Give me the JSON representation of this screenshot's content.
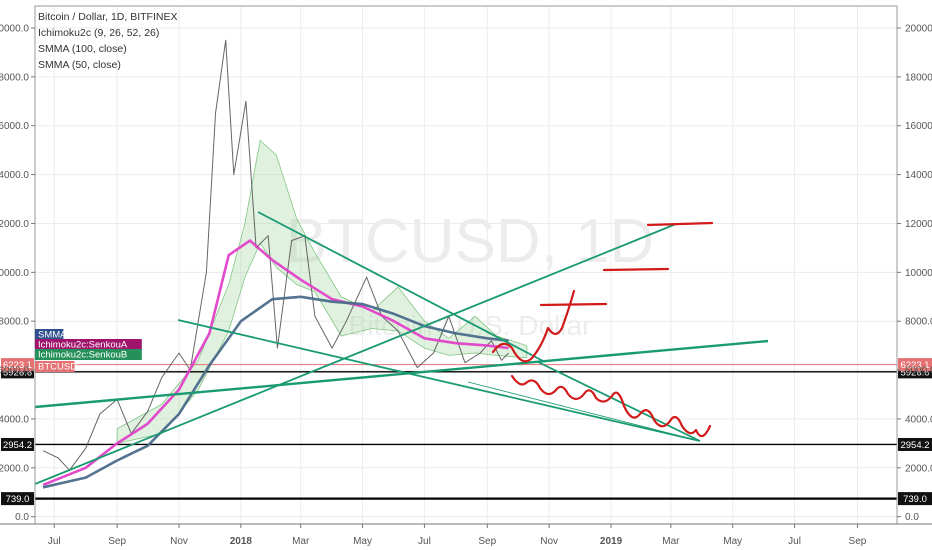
{
  "chart_data": {
    "type": "line",
    "title": "Bitcoin / Dollar, 1D, BITFINEX",
    "watermark": {
      "symbol": "BTCUSD, 1D",
      "subtitle": "Bitcoin / U.S. Dollar"
    },
    "indicators": [
      "Ichimoku2c (9, 26, 52, 26)",
      "SMMA (100, close)",
      "SMMA (50, close)"
    ],
    "x_ticks": [
      "Jul",
      "Sep",
      "Nov",
      "2018",
      "Mar",
      "May",
      "Jul",
      "Sep",
      "Nov",
      "2019",
      "Mar",
      "May",
      "Jul",
      "Sep"
    ],
    "bold_x_ticks": [
      "2018",
      "2019"
    ],
    "y_ticks": [
      "0.0",
      "2000.0",
      "4000.0",
      "6000.0",
      "8000.0",
      "10000.0",
      "12000.0",
      "14000.0",
      "16000.0",
      "18000.0",
      "20000.0"
    ],
    "ylim": [
      -300,
      20900
    ],
    "horizontal_levels": [
      {
        "value": 5926.6,
        "label": "5926.6",
        "color": "#000000"
      },
      {
        "value": 2954.2,
        "label": "2954.2",
        "color": "#000000"
      },
      {
        "value": 739.0,
        "label": "739.0",
        "color": "#000000"
      }
    ],
    "price_badge": {
      "value": 6223.1,
      "label": "6223.1",
      "color": "#e57373"
    },
    "series_labels": [
      {
        "label": "SMMA",
        "color": "#2f4f8f"
      },
      {
        "label": "Ichimoku2c:SenkouA",
        "color": "#a0136b"
      },
      {
        "label": "Ichimoku2c:SenkouB",
        "color": "#26905a"
      },
      {
        "label": "BTCUSD",
        "color": "#e57373"
      }
    ],
    "series": [
      {
        "name": "BTCUSD",
        "x": [
          "2017-06-20",
          "2017-07-05",
          "2017-07-16",
          "2017-08-01",
          "2017-08-15",
          "2017-09-01",
          "2017-09-15",
          "2017-10-01",
          "2017-10-15",
          "2017-11-01",
          "2017-11-12",
          "2017-11-28",
          "2017-12-07",
          "2017-12-17",
          "2017-12-25",
          "2018-01-06",
          "2018-01-16",
          "2018-01-28",
          "2018-02-06",
          "2018-02-20",
          "2018-03-05",
          "2018-03-15",
          "2018-04-01",
          "2018-04-15",
          "2018-05-05",
          "2018-05-20",
          "2018-06-05",
          "2018-06-24",
          "2018-07-10",
          "2018-07-25",
          "2018-08-10",
          "2018-08-25",
          "2018-09-05",
          "2018-09-15",
          "2018-09-22"
        ],
        "values": [
          2700,
          2400,
          1900,
          2800,
          4200,
          4800,
          3400,
          4300,
          5700,
          6700,
          6000,
          10000,
          16500,
          19500,
          14000,
          17000,
          11000,
          11500,
          6900,
          11300,
          11500,
          8200,
          6900,
          8000,
          9800,
          8200,
          7600,
          6100,
          6700,
          8200,
          6300,
          6700,
          7200,
          6400,
          6700
        ],
        "color": "#555555"
      },
      {
        "name": "SMMA (50, close)",
        "x": [
          "2017-06-20",
          "2017-08-01",
          "2017-09-01",
          "2017-10-01",
          "2017-11-01",
          "2017-12-01",
          "2017-12-20",
          "2018-01-10",
          "2018-02-01",
          "2018-03-01",
          "2018-04-01",
          "2018-05-01",
          "2018-06-01",
          "2018-07-01",
          "2018-08-01",
          "2018-09-01",
          "2018-09-22"
        ],
        "values": [
          1300,
          2000,
          3000,
          3800,
          5200,
          7500,
          10700,
          11300,
          10500,
          9700,
          8900,
          8600,
          8000,
          7300,
          7100,
          7000,
          6900
        ],
        "color": "#e040c8"
      },
      {
        "name": "SMMA (100, close)",
        "x": [
          "2017-06-20",
          "2017-08-01",
          "2017-09-01",
          "2017-10-01",
          "2017-11-01",
          "2017-12-01",
          "2018-01-01",
          "2018-02-01",
          "2018-03-01",
          "2018-04-01",
          "2018-05-01",
          "2018-06-01",
          "2018-07-01",
          "2018-08-01",
          "2018-09-01",
          "2018-09-22"
        ],
        "values": [
          1200,
          1600,
          2300,
          2900,
          4200,
          6200,
          8000,
          8900,
          9000,
          8800,
          8700,
          8300,
          7800,
          7500,
          7300,
          7200
        ],
        "color": "#4a6b8a"
      }
    ]
  }
}
